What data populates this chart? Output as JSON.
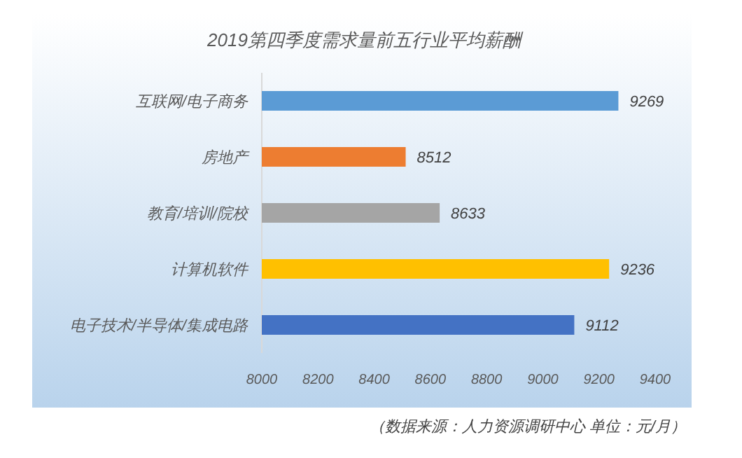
{
  "chart_data": {
    "type": "bar",
    "orientation": "horizontal",
    "title": "2019第四季度需求量前五行业平均薪酬",
    "categories": [
      "互联网/电子商务",
      "房地产",
      "教育/培训/院校",
      "计算机软件",
      "电子技术/半导体/集成电路"
    ],
    "values": [
      9269,
      8512,
      8633,
      9236,
      9112
    ],
    "colors": [
      "#5b9bd5",
      "#ed7d31",
      "#a5a5a5",
      "#ffc000",
      "#4472c4"
    ],
    "xlim": [
      8000,
      9400
    ],
    "xticks": [
      8000,
      8200,
      8400,
      8600,
      8800,
      9000,
      9200,
      9400
    ],
    "data_labels": true,
    "grid": false,
    "annotations": [
      "（数据来源：人力资源调研中心 单位：元/月）"
    ]
  }
}
